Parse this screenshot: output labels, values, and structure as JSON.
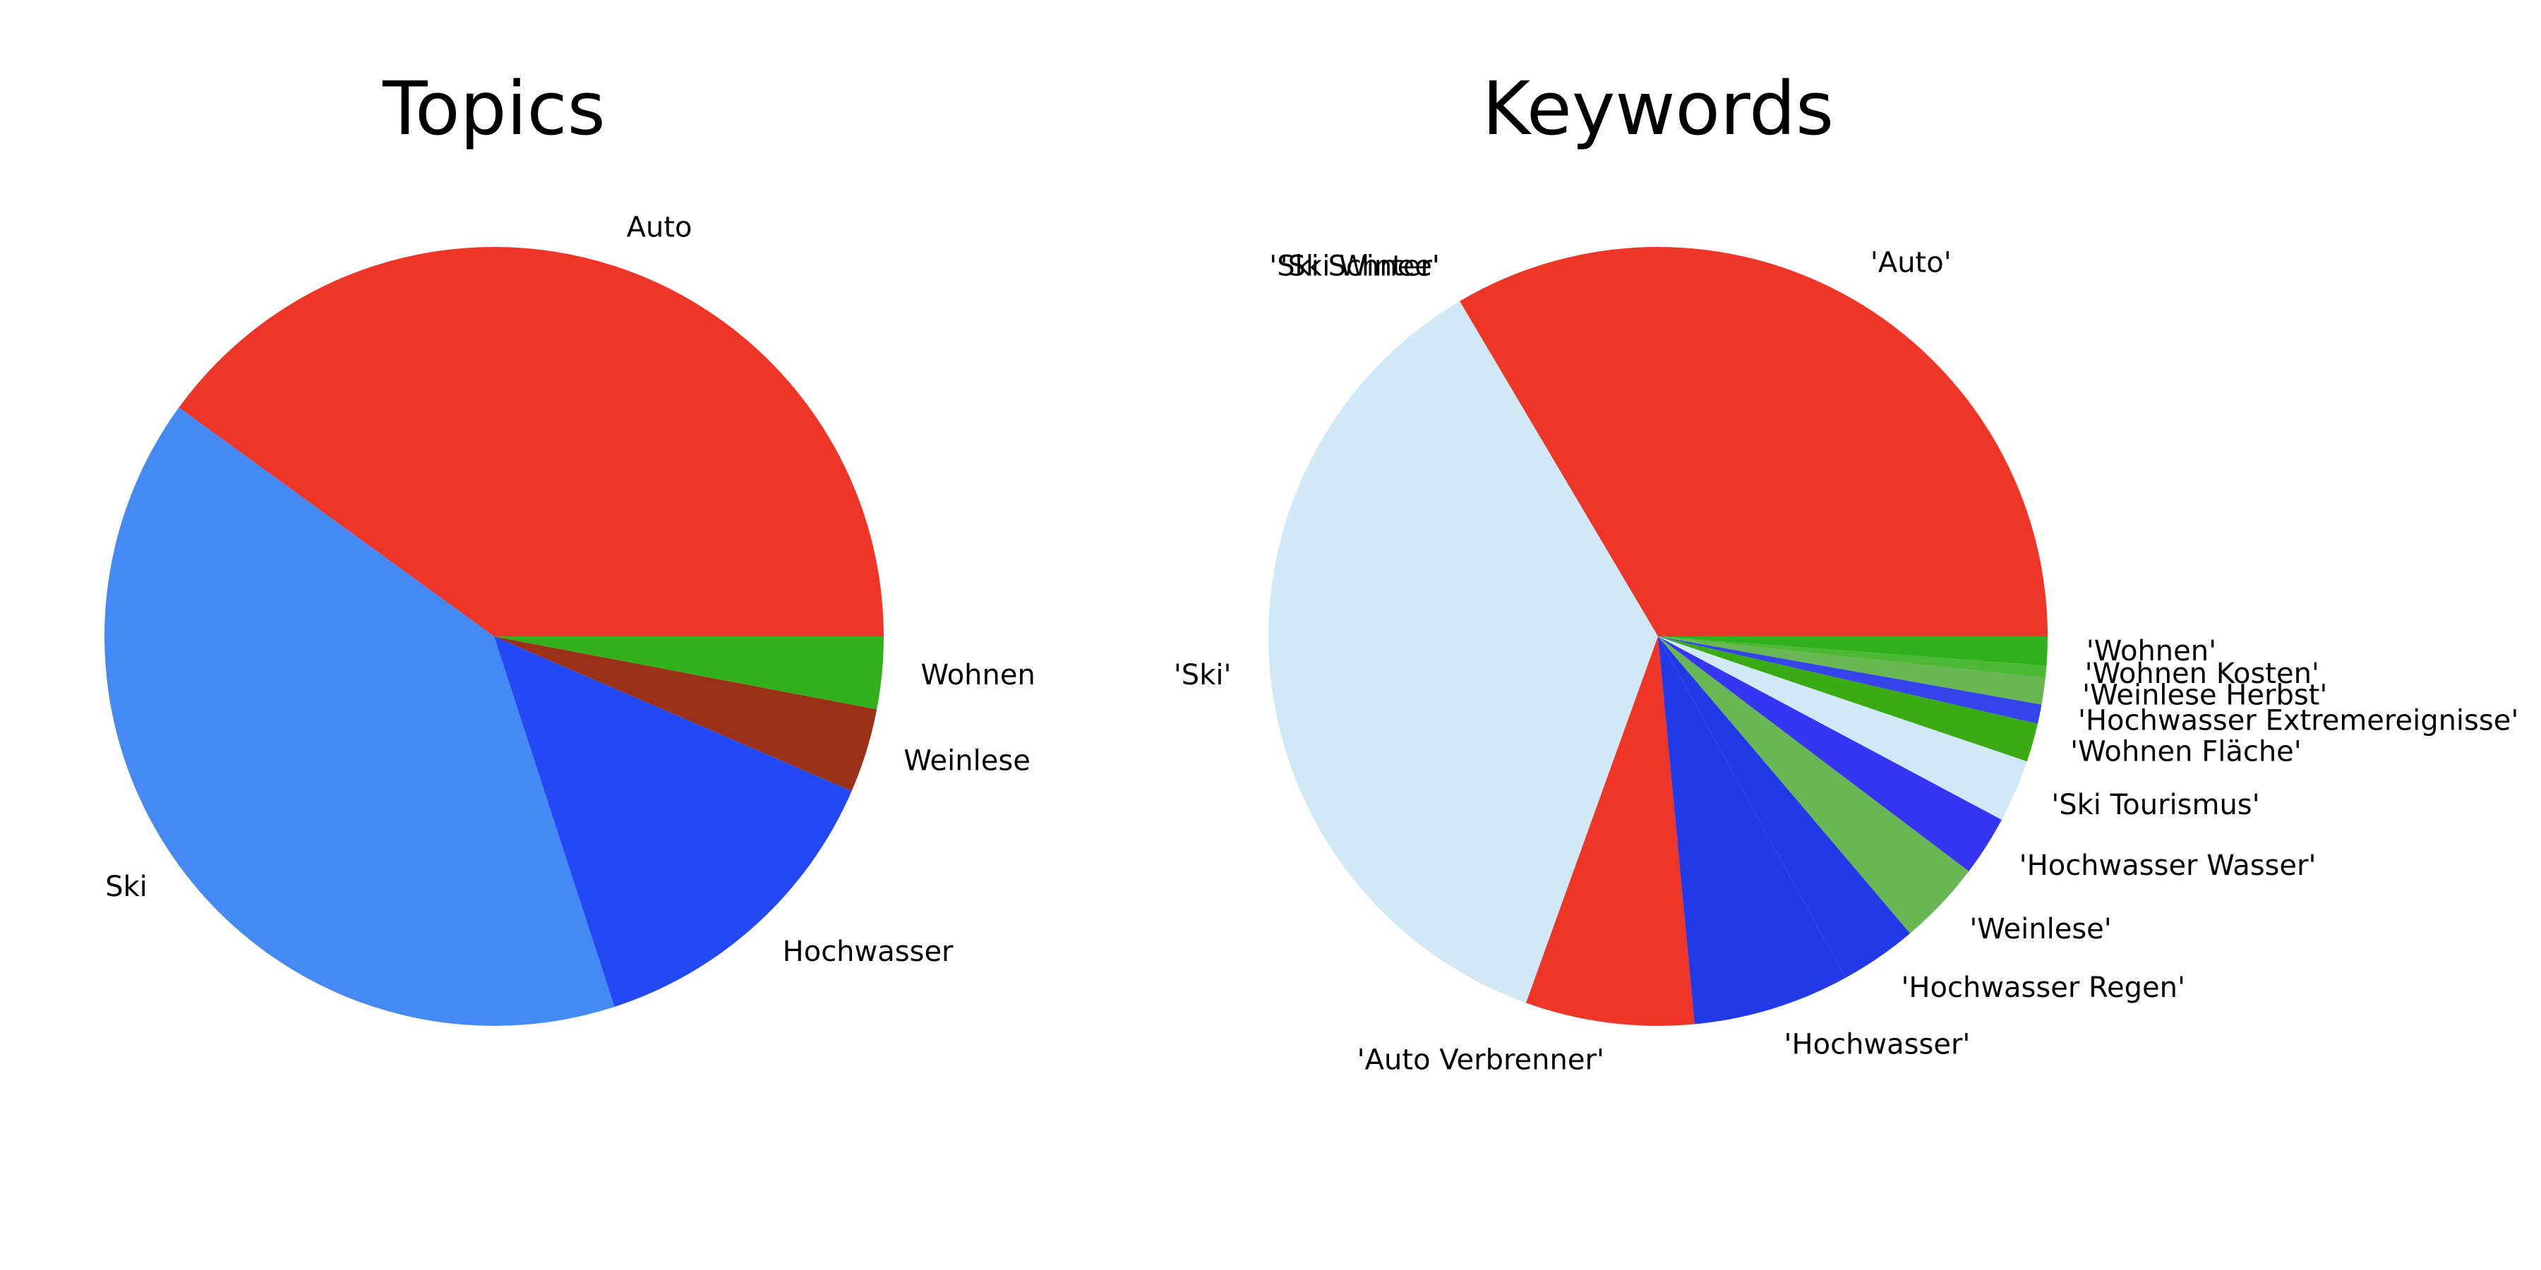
{
  "chart_data": [
    {
      "type": "pie",
      "title": "Topics",
      "start_angle": 0,
      "direction": "counterclockwise",
      "slices": [
        {
          "label": "Auto",
          "value": 40.0,
          "color": "#ee3628"
        },
        {
          "label": "Ski",
          "value": 40.0,
          "color": "#4589f5"
        },
        {
          "label": "Hochwasser",
          "value": 13.5,
          "color": "#2349f5"
        },
        {
          "label": "Weinlese",
          "value": 3.5,
          "color": "#9b3118"
        },
        {
          "label": "Wohnen",
          "value": 3.0,
          "color": "#31b01b"
        }
      ]
    },
    {
      "type": "pie",
      "title": "Keywords",
      "start_angle": 0,
      "direction": "counterclockwise",
      "slices": [
        {
          "label": "'Auto'",
          "value": 33.5,
          "color": "#ee3628"
        },
        {
          "label": "'Ski Winter'",
          "value": 0.0,
          "color": "#d1e8f5"
        },
        {
          "label": "'Ski Schnee'",
          "value": 0.0,
          "color": "#d1e8f5"
        },
        {
          "label": "'Ski'",
          "value": 36.0,
          "color": "#d1e8f5"
        },
        {
          "label": "'Auto Verbrenner'",
          "value": 7.0,
          "color": "#ee3628"
        },
        {
          "label": "'Hochwasser'",
          "value": 6.5,
          "color": "#2139e6"
        },
        {
          "label": "'Hochwasser Regen'",
          "value": 3.2,
          "color": "#2139e6"
        },
        {
          "label": "'Weinlese'",
          "value": 3.5,
          "color": "#69b654"
        },
        {
          "label": "'Hochwasser Wasser'",
          "value": 2.5,
          "color": "#3535f2"
        },
        {
          "label": "'Ski Tourismus'",
          "value": 2.6,
          "color": "#d1e8f5"
        },
        {
          "label": "'Wohnen Fläche'",
          "value": 1.6,
          "color": "#3aab14"
        },
        {
          "label": "'Hochwasser Extremereignisse'",
          "value": 0.8,
          "color": "#3544e8"
        },
        {
          "label": "'Weinlese Herbst'",
          "value": 1.1,
          "color": "#69b654"
        },
        {
          "label": "'Wohnen Kosten'",
          "value": 0.5,
          "color": "#4cb833"
        },
        {
          "label": "'Wohnen'",
          "value": 1.2,
          "color": "#2fb11b"
        }
      ]
    }
  ]
}
